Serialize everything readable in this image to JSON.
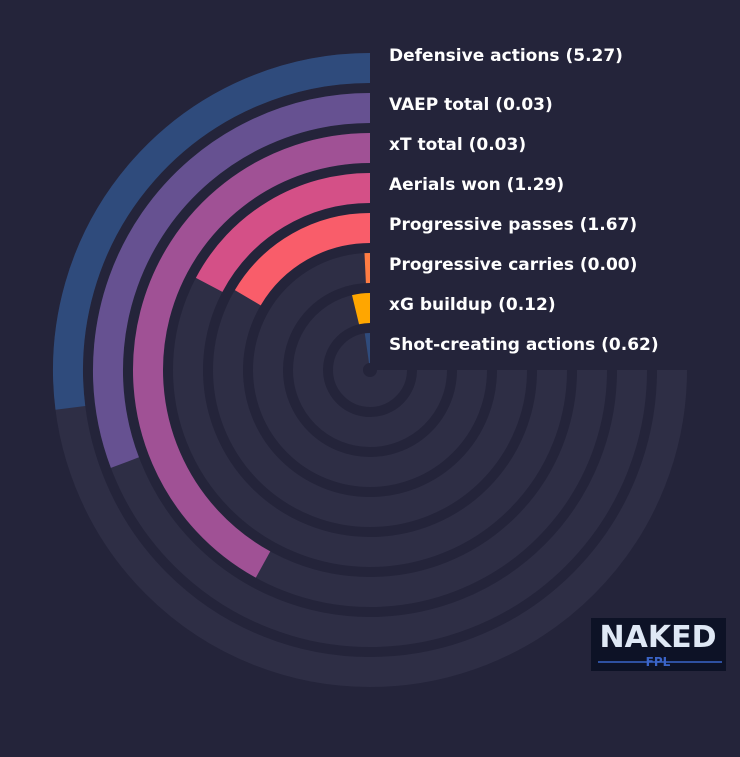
{
  "chart_data": {
    "type": "radial-bar",
    "categories": [
      "Defensive actions (5.27)",
      "VAEP total (0.03)",
      "xT total (0.03)",
      "Aerials won (1.29)",
      "Progressive passes (1.67)",
      "Progressive carries (0.00)",
      "xG buildup (0.12)",
      "Shot-creating actions (0.62)"
    ],
    "values": [
      36,
      41,
      56,
      23,
      22,
      1,
      5,
      3
    ],
    "colors": [
      "#2f4b7c",
      "#665191",
      "#a05195",
      "#d45087",
      "#f95d6a",
      "#ff7c43",
      "#ffa600",
      "#2f4b7c"
    ],
    "ylim": [
      0,
      100
    ]
  },
  "logo": [
    "NAKED",
    "FPL"
  ]
}
